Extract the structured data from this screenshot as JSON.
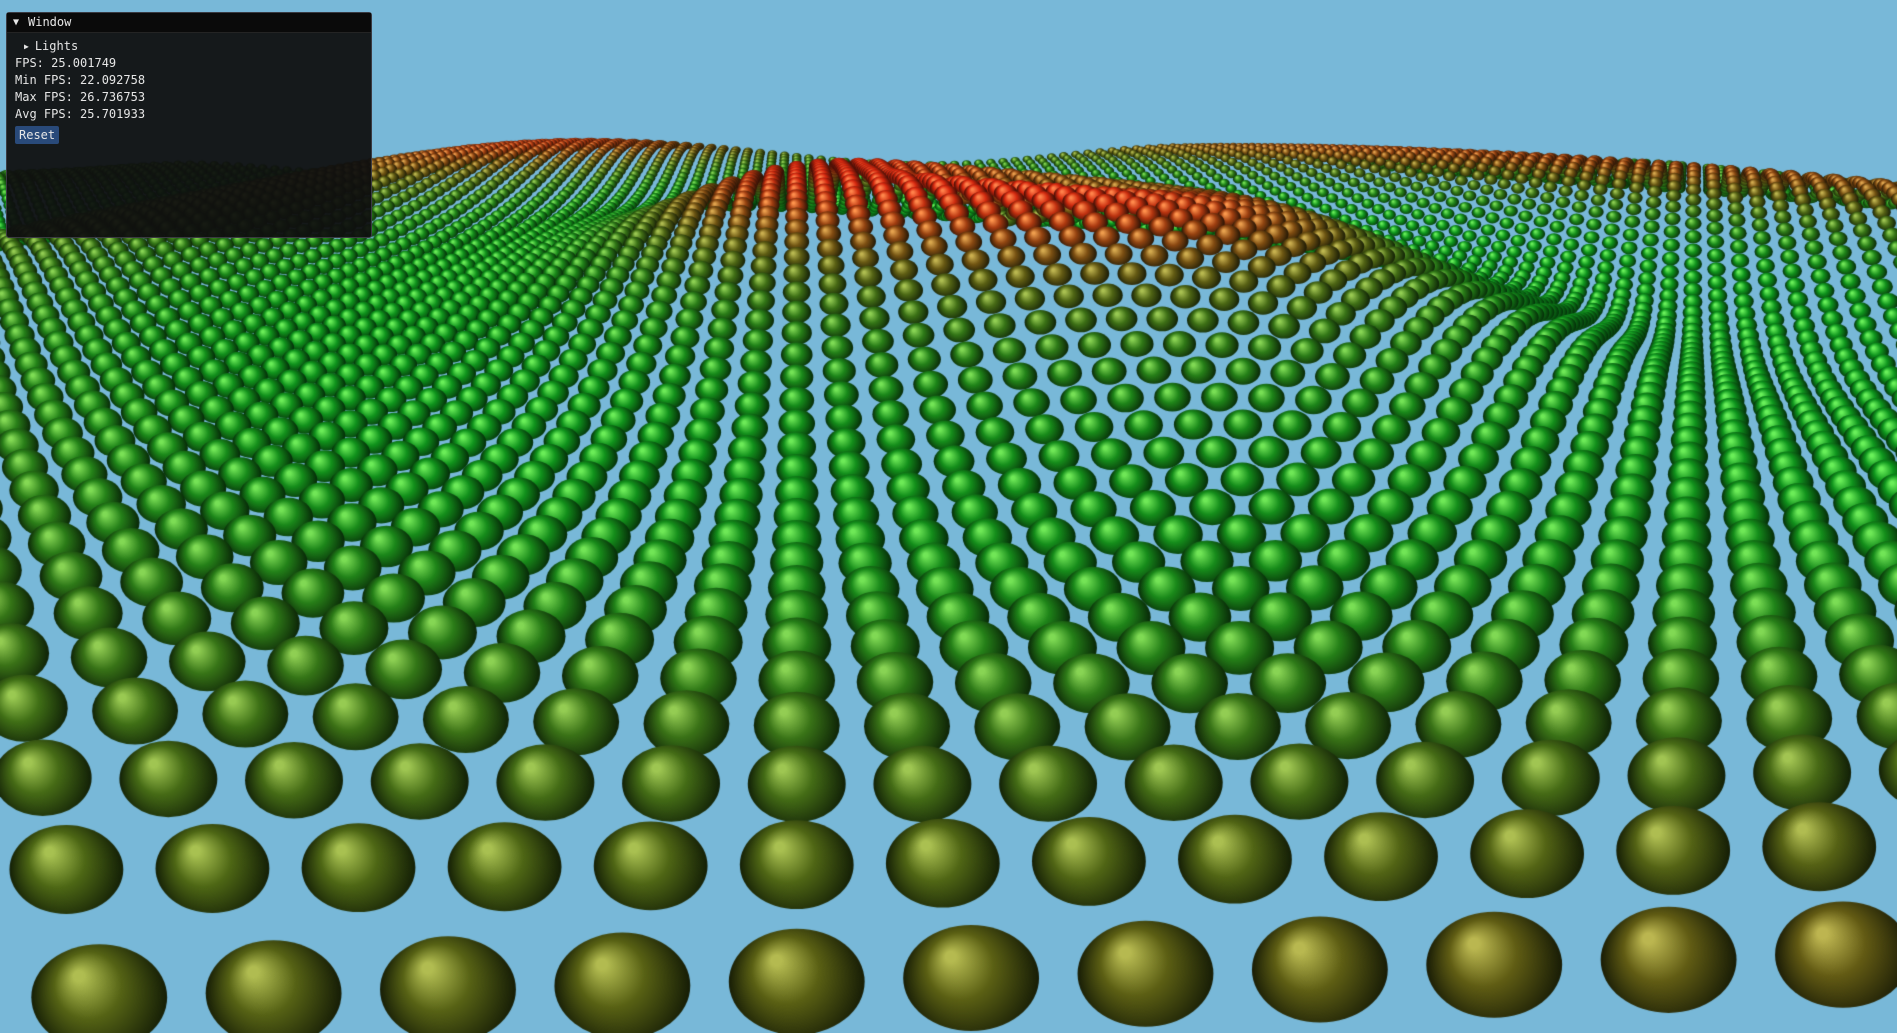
{
  "scene": {
    "sky_color": "#78b8d8",
    "ball_colors": {
      "near_green": "#0d8a1f",
      "crest_red": "#c81010",
      "olive": "#6d5a10"
    }
  },
  "window": {
    "title": "Window",
    "collapse_icon": "triangle-down-icon",
    "lights_label": "Lights",
    "lights_icon": "triangle-right-icon",
    "stats": {
      "fps": "FPS: 25.001749",
      "min_fps": "Min FPS: 22.092758",
      "max_fps": "Max FPS: 26.736753",
      "avg_fps": "Avg FPS: 25.701933"
    },
    "reset_label": "Reset"
  }
}
